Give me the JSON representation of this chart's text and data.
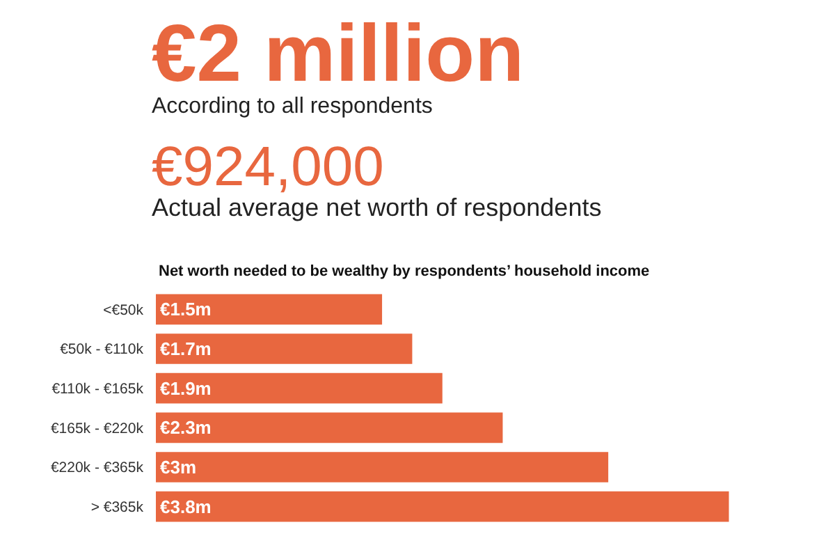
{
  "chart_data": {
    "type": "bar",
    "orientation": "horizontal",
    "title": "Net worth needed to be wealthy by respondents’ household income",
    "annotations": [
      "€2 million",
      "According to all respondents",
      "€924,000",
      "Actual average net worth of respondents"
    ],
    "categories": [
      "<€50k",
      "€50k - €110k",
      "€110k - €165k",
      "€165k - €220k",
      "€220k - €365k",
      "> €365k"
    ],
    "values": [
      1.5,
      1.7,
      1.9,
      2.3,
      3,
      3.8
    ],
    "value_labels": [
      "€1.5m",
      "€1.7m",
      "€1.9m",
      "€2.3m",
      "€3m",
      "€3.8m"
    ],
    "color": "#e8673f",
    "legend": false
  }
}
